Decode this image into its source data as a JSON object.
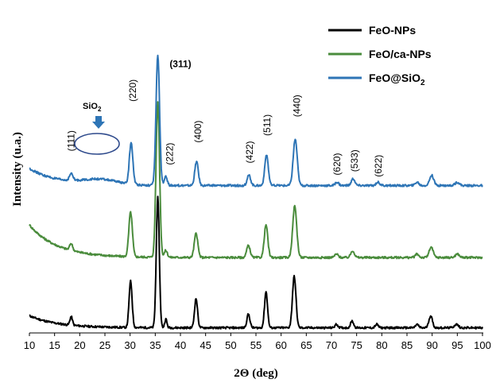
{
  "chart_data": {
    "type": "line",
    "xlabel": "2Θ (deg)",
    "ylabel": "Intensity (u.a.)",
    "xlim": [
      10,
      100
    ],
    "xticks": [
      10,
      15,
      20,
      25,
      30,
      35,
      40,
      45,
      50,
      55,
      60,
      65,
      70,
      75,
      80,
      85,
      90,
      95,
      100
    ],
    "grid": false,
    "legend_position": "top-right",
    "series": [
      {
        "name": "FeO-NPs",
        "color": "#000000",
        "baseline": 0.03,
        "start": 0.1,
        "decay": 0.07,
        "peaks": [
          {
            "x": 18.3,
            "h": 0.05,
            "w": 0.25
          },
          {
            "x": 30.1,
            "h": 0.27,
            "w": 0.3
          },
          {
            "x": 35.5,
            "h": 0.76,
            "w": 0.3
          },
          {
            "x": 37.1,
            "h": 0.05,
            "w": 0.22
          },
          {
            "x": 43.1,
            "h": 0.17,
            "w": 0.3
          },
          {
            "x": 53.5,
            "h": 0.08,
            "w": 0.3
          },
          {
            "x": 57.0,
            "h": 0.21,
            "w": 0.3
          },
          {
            "x": 62.6,
            "h": 0.3,
            "w": 0.35
          },
          {
            "x": 71.0,
            "h": 0.02,
            "w": 0.3
          },
          {
            "x": 74.1,
            "h": 0.04,
            "w": 0.3
          },
          {
            "x": 79.0,
            "h": 0.02,
            "w": 0.3
          },
          {
            "x": 87.0,
            "h": 0.02,
            "w": 0.3
          },
          {
            "x": 89.7,
            "h": 0.07,
            "w": 0.35
          },
          {
            "x": 94.8,
            "h": 0.02,
            "w": 0.4
          }
        ]
      },
      {
        "name": "FeO/ca-NPs",
        "color": "#4a8c3c",
        "baseline": 0.44,
        "start": 0.63,
        "decay": 0.07,
        "peaks": [
          {
            "x": 18.3,
            "h": 0.04,
            "w": 0.3
          },
          {
            "x": 30.1,
            "h": 0.26,
            "w": 0.35
          },
          {
            "x": 35.5,
            "h": 0.91,
            "w": 0.35
          },
          {
            "x": 37.1,
            "h": 0.04,
            "w": 0.3
          },
          {
            "x": 43.1,
            "h": 0.14,
            "w": 0.35
          },
          {
            "x": 53.5,
            "h": 0.07,
            "w": 0.35
          },
          {
            "x": 57.0,
            "h": 0.19,
            "w": 0.35
          },
          {
            "x": 62.7,
            "h": 0.3,
            "w": 0.4
          },
          {
            "x": 71.0,
            "h": 0.02,
            "w": 0.35
          },
          {
            "x": 74.2,
            "h": 0.04,
            "w": 0.35
          },
          {
            "x": 87.0,
            "h": 0.02,
            "w": 0.35
          },
          {
            "x": 89.8,
            "h": 0.06,
            "w": 0.4
          },
          {
            "x": 95.0,
            "h": 0.02,
            "w": 0.4
          }
        ]
      },
      {
        "name": "FeO@SiO2",
        "color": "#2e75b6",
        "baseline": 0.86,
        "start": 0.96,
        "decay": 0.09,
        "hump": {
          "x": 24.0,
          "h": 0.03,
          "w": 3.5
        },
        "peaks": [
          {
            "x": 18.3,
            "h": 0.04,
            "w": 0.35
          },
          {
            "x": 30.2,
            "h": 0.24,
            "w": 0.35
          },
          {
            "x": 35.5,
            "h": 0.76,
            "w": 0.35
          },
          {
            "x": 37.1,
            "h": 0.05,
            "w": 0.3
          },
          {
            "x": 43.2,
            "h": 0.14,
            "w": 0.35
          },
          {
            "x": 53.6,
            "h": 0.06,
            "w": 0.35
          },
          {
            "x": 57.1,
            "h": 0.18,
            "w": 0.35
          },
          {
            "x": 62.8,
            "h": 0.27,
            "w": 0.4
          },
          {
            "x": 71.1,
            "h": 0.02,
            "w": 0.35
          },
          {
            "x": 74.3,
            "h": 0.04,
            "w": 0.35
          },
          {
            "x": 79.2,
            "h": 0.02,
            "w": 0.35
          },
          {
            "x": 87.0,
            "h": 0.02,
            "w": 0.35
          },
          {
            "x": 89.9,
            "h": 0.06,
            "w": 0.4
          },
          {
            "x": 95.0,
            "h": 0.02,
            "w": 0.4
          }
        ]
      }
    ],
    "annotations": [
      {
        "text": "(311)",
        "x": 40.0,
        "y": 1.55,
        "bold": true
      },
      {
        "text": "(220)",
        "x": 30.5,
        "y": 1.35,
        "rotate": true
      },
      {
        "text": "(111)",
        "x": 18.3,
        "y": 1.06,
        "rotate": true
      },
      {
        "text": "(222)",
        "x": 37.9,
        "y": 0.98,
        "rotate": true
      },
      {
        "text": "(400)",
        "x": 43.5,
        "y": 1.11,
        "rotate": true
      },
      {
        "text": "(422)",
        "x": 53.7,
        "y": 0.99,
        "rotate": true
      },
      {
        "text": "(511)",
        "x": 57.2,
        "y": 1.15,
        "rotate": true
      },
      {
        "text": "(440)",
        "x": 63.1,
        "y": 1.26,
        "rotate": true
      },
      {
        "text": "(620)",
        "x": 71.1,
        "y": 0.92,
        "rotate": true
      },
      {
        "text": "(533)",
        "x": 74.6,
        "y": 0.94,
        "rotate": true
      },
      {
        "text": "(622)",
        "x": 79.3,
        "y": 0.91,
        "rotate": true
      }
    ],
    "sio2_label": {
      "text": "SiO",
      "sub": "2"
    }
  },
  "legend": {
    "items": [
      {
        "label": "FeO-NPs",
        "sub": "",
        "color": "#000000"
      },
      {
        "label": "FeO/ca-NPs",
        "sub": "",
        "color": "#4a8c3c"
      },
      {
        "label": "FeO@SiO",
        "sub": "2",
        "color": "#2e75b6"
      }
    ]
  }
}
